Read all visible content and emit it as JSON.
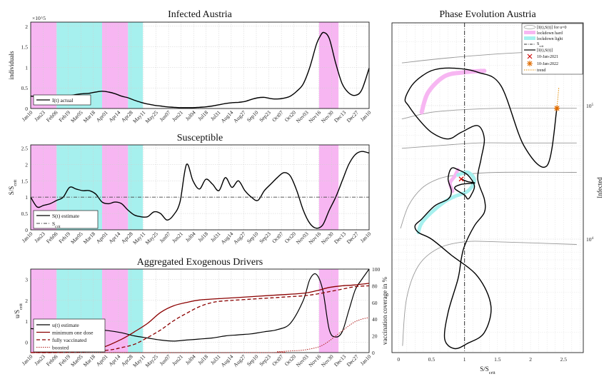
{
  "chart_data": [
    {
      "type": "line",
      "title": "Infected Austria",
      "ylabel": "individuals",
      "y_exponent": "×10^5",
      "ylim": [
        0,
        2.1
      ],
      "yticks": [
        "0",
        "0.5",
        "1",
        "1.5",
        "2"
      ],
      "x_tick_labels": [
        "Jan10",
        "Jan23",
        "Feb06",
        "Feb19",
        "Mar05",
        "Mar18",
        "Apr01",
        "Apr14",
        "Apr28",
        "May11",
        "May25",
        "Jun07",
        "Jun21",
        "Jul04",
        "Jul18",
        "Jul31",
        "Aug14",
        "Aug27",
        "Sep10",
        "Sep23",
        "Oct07",
        "Oct20",
        "Nov03",
        "Nov16",
        "Nov30",
        "Dec13",
        "Dec27",
        "Jan10"
      ],
      "legend": [
        "I(t) actual"
      ],
      "series": [
        {
          "name": "I(t) actual",
          "x": [
            0,
            7,
            14,
            21,
            28,
            35,
            42,
            49,
            56,
            63,
            70,
            77,
            84,
            91,
            98,
            105,
            112,
            119,
            126,
            133,
            140,
            147,
            154,
            161,
            168,
            175,
            182,
            189,
            196,
            203,
            210,
            217,
            224,
            231,
            238,
            245,
            252,
            259,
            266,
            273,
            280,
            287,
            294,
            301,
            308,
            312,
            316,
            322,
            329,
            336,
            343,
            350,
            357,
            365
          ],
          "y": [
            0.3,
            0.29,
            0.27,
            0.25,
            0.24,
            0.27,
            0.31,
            0.34,
            0.36,
            0.37,
            0.4,
            0.42,
            0.4,
            0.36,
            0.3,
            0.26,
            0.2,
            0.15,
            0.11,
            0.08,
            0.06,
            0.04,
            0.03,
            0.02,
            0.02,
            0.02,
            0.03,
            0.04,
            0.06,
            0.09,
            0.12,
            0.14,
            0.15,
            0.17,
            0.22,
            0.26,
            0.27,
            0.24,
            0.23,
            0.25,
            0.3,
            0.42,
            0.6,
            1.0,
            1.55,
            1.75,
            1.85,
            1.7,
            1.1,
            0.6,
            0.38,
            0.32,
            0.45,
            0.98
          ]
        }
      ],
      "shaded": [
        {
          "kind": "lockdown hard",
          "from": 0,
          "to": 28
        },
        {
          "kind": "lockdown light",
          "from": 28,
          "to": 77
        },
        {
          "kind": "lockdown hard",
          "from": 77,
          "to": 105
        },
        {
          "kind": "lockdown light",
          "from": 105,
          "to": 121
        },
        {
          "kind": "lockdown hard",
          "from": 311,
          "to": 332
        }
      ]
    },
    {
      "type": "line",
      "title": "Susceptible",
      "ylabel": "S/S_crit",
      "ylim": [
        0,
        2.6
      ],
      "yticks": [
        "0",
        "0.5",
        "1",
        "1.5",
        "2",
        "2.5"
      ],
      "legend": [
        "S(t) estimate",
        "S_crit"
      ],
      "series": [
        {
          "name": "S(t) estimate",
          "x": [
            0,
            7,
            14,
            21,
            28,
            35,
            42,
            49,
            56,
            63,
            70,
            77,
            84,
            91,
            98,
            105,
            112,
            119,
            126,
            133,
            140,
            147,
            154,
            161,
            168,
            175,
            182,
            189,
            196,
            203,
            210,
            217,
            224,
            231,
            238,
            245,
            252,
            259,
            266,
            273,
            280,
            287,
            294,
            301,
            308,
            315,
            322,
            329,
            336,
            343,
            350,
            357,
            365
          ],
          "y": [
            1.0,
            0.7,
            0.75,
            0.8,
            0.9,
            1.0,
            1.3,
            1.25,
            1.2,
            1.2,
            1.1,
            0.85,
            0.8,
            0.85,
            0.8,
            0.6,
            0.45,
            0.4,
            0.4,
            0.55,
            0.5,
            0.3,
            0.45,
            0.85,
            2.0,
            1.5,
            1.25,
            1.55,
            1.4,
            1.2,
            1.6,
            1.3,
            1.5,
            1.2,
            1.0,
            0.9,
            1.2,
            1.4,
            1.6,
            1.75,
            1.65,
            1.2,
            0.6,
            0.2,
            0.05,
            0.15,
            0.6,
            1.0,
            1.5,
            2.0,
            2.3,
            2.4,
            2.35
          ]
        },
        {
          "name": "S_crit",
          "x": [
            0,
            365
          ],
          "y": [
            1,
            1
          ]
        }
      ]
    },
    {
      "type": "line",
      "title": "Aggregated Exogenous Drivers",
      "ylabel": "u/S_crit",
      "y2label": "vaccination coverage in %",
      "ylim": [
        -0.5,
        3.5
      ],
      "yticks": [
        "0",
        "1",
        "2",
        "3"
      ],
      "y2lim": [
        0,
        100
      ],
      "y2ticks": [
        "0",
        "20",
        "40",
        "60",
        "80",
        "100"
      ],
      "legend": [
        "u(t) estimate",
        "minimum one dose",
        "fully vaccinated",
        "boosted"
      ],
      "series": [
        {
          "name": "u(t) estimate",
          "axis": "left",
          "x": [
            0,
            14,
            28,
            42,
            56,
            70,
            84,
            98,
            112,
            126,
            140,
            154,
            168,
            182,
            196,
            210,
            224,
            238,
            252,
            266,
            280,
            294,
            301,
            308,
            315,
            322,
            329,
            336,
            343,
            350,
            357,
            365
          ],
          "y": [
            0.65,
            0.6,
            0.55,
            0.52,
            0.55,
            0.6,
            0.55,
            0.45,
            0.3,
            0.2,
            0.1,
            0.05,
            0.1,
            0.15,
            0.2,
            0.3,
            0.35,
            0.4,
            0.5,
            0.6,
            0.9,
            2.0,
            3.0,
            3.25,
            2.5,
            0.6,
            0.25,
            0.5,
            1.5,
            2.5,
            3.0,
            3.5
          ]
        },
        {
          "name": "minimum one dose",
          "axis": "right",
          "x": [
            0,
            28,
            56,
            77,
            98,
            112,
            126,
            140,
            154,
            168,
            182,
            210,
            238,
            266,
            294,
            308,
            322,
            336,
            350,
            365
          ],
          "y": [
            0,
            1,
            3,
            6,
            16,
            25,
            35,
            48,
            56,
            60,
            63,
            65,
            67,
            69,
            71,
            74,
            78,
            80,
            81,
            83
          ]
        },
        {
          "name": "fully vaccinated",
          "axis": "right",
          "x": [
            0,
            28,
            56,
            84,
            98,
            112,
            126,
            140,
            154,
            168,
            182,
            196,
            210,
            238,
            266,
            280,
            294,
            308,
            322,
            336,
            350,
            365
          ],
          "y": [
            0,
            0,
            1,
            3,
            6,
            10,
            18,
            27,
            38,
            47,
            55,
            60,
            62,
            64,
            66,
            67,
            68,
            70,
            73,
            76,
            79,
            80
          ]
        },
        {
          "name": "boosted",
          "axis": "right",
          "x": [
            0,
            252,
            266,
            280,
            294,
            308,
            315,
            322,
            329,
            336,
            343,
            350,
            357,
            365
          ],
          "y": [
            0,
            0,
            1,
            2,
            3,
            6,
            9,
            14,
            20,
            26,
            32,
            37,
            40,
            42
          ]
        }
      ]
    },
    {
      "type": "line",
      "title": "Phase Evolution Austria",
      "xlabel": "S/S_crit",
      "ylabel": "Infected",
      "ytick_labels": [
        "10^4",
        "10^5"
      ],
      "xticks": [
        "0",
        "0.5",
        "1",
        "1.5",
        "2",
        "2.5"
      ],
      "xlim": [
        -0.1,
        2.8
      ],
      "ylim_log10": [
        3.15,
        5.62
      ],
      "legend": [
        "[I(t),S(t)] for u=0",
        "lockdown hard",
        "lockdown light",
        "S_crit",
        "[I(t),S(t)]",
        "10-Jan-2021",
        "10-Jan-2022",
        "trend"
      ],
      "series": [
        {
          "name": "[I(t),S(t)]",
          "x": [
            0.95,
            1.05,
            1.15,
            0.95,
            0.85,
            1.0,
            1.05,
            1.1,
            1.15,
            1.05,
            0.9,
            0.8,
            0.75,
            0.8,
            0.75,
            0.55,
            0.35,
            0.25,
            0.3,
            0.5,
            0.8,
            1.2,
            1.4,
            1.3,
            1.05,
            0.85,
            0.7,
            0.75,
            0.9,
            0.95,
            1.0,
            1.15,
            1.3,
            1.3,
            1.2,
            1.25,
            1.3,
            1.2,
            0.95,
            0.75,
            0.5,
            0.3,
            0.15,
            0.1,
            0.2,
            0.35,
            0.55,
            0.85,
            1.2,
            1.55,
            1.9,
            2.25,
            2.4
          ],
          "y": [
            4.45,
            4.43,
            4.42,
            4.41,
            4.38,
            4.33,
            4.3,
            4.33,
            4.4,
            4.48,
            4.52,
            4.53,
            4.45,
            4.36,
            4.3,
            4.25,
            4.15,
            4.1,
            4.05,
            4.0,
            3.88,
            3.72,
            3.5,
            3.3,
            3.22,
            3.18,
            3.25,
            3.45,
            3.7,
            3.85,
            3.95,
            4.1,
            4.2,
            4.3,
            4.45,
            4.6,
            4.75,
            4.85,
            4.8,
            4.75,
            4.8,
            4.9,
            5.0,
            5.05,
            5.15,
            5.22,
            5.27,
            5.28,
            5.25,
            5.15,
            4.7,
            4.55,
            4.98
          ]
        },
        {
          "name": "trend",
          "x": [
            2.4,
            2.43
          ],
          "y": [
            4.98,
            5.14
          ]
        }
      ],
      "markers": [
        {
          "name": "10-Jan-2021",
          "x": 0.95,
          "y": 4.45
        },
        {
          "name": "10-Jan-2022",
          "x": 2.4,
          "y": 4.98
        }
      ],
      "reference_line": {
        "name": "S_crit",
        "x": 1
      }
    }
  ],
  "colors": {
    "lockdown_hard": "#f7b6f2",
    "lockdown_light": "#a6f0ee",
    "curve": "#000000",
    "dose1": "#8b0000",
    "fully": "#8b0000",
    "boosted": "#b22222",
    "marker_2021": "#cc0000",
    "marker_2022": "#e06c00",
    "trend": "#e08a00",
    "u0": "#999999"
  }
}
